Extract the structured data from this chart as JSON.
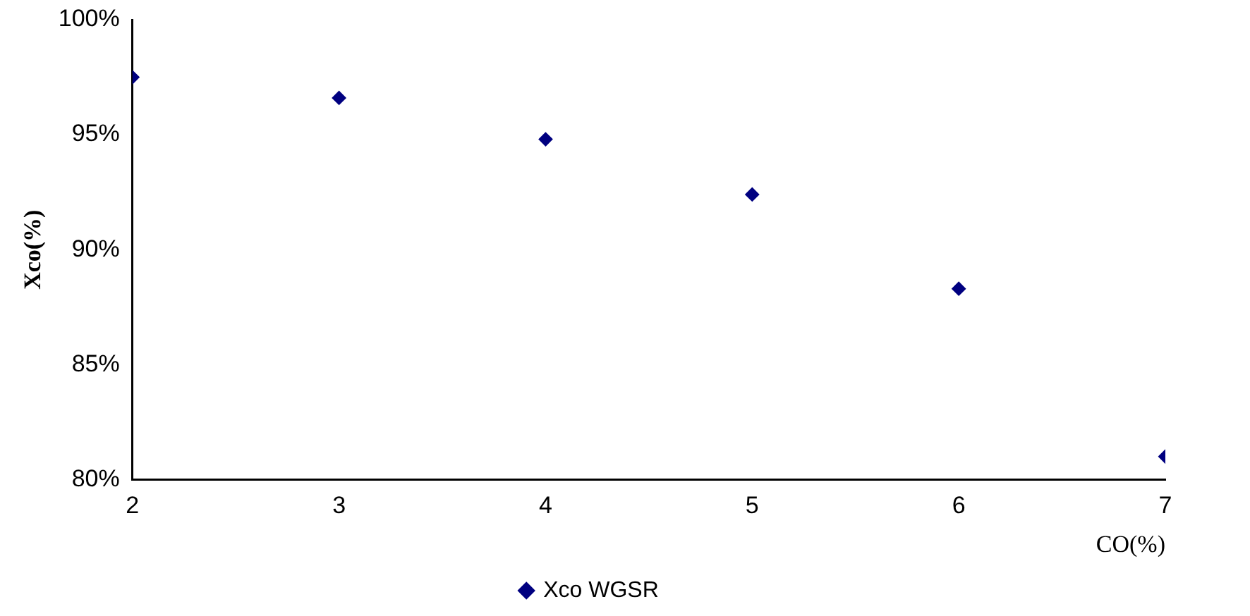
{
  "chart_data": {
    "type": "scatter",
    "xlabel": "CO(%)",
    "ylabel": "Xco(%)",
    "x": [
      2,
      3,
      4,
      5,
      6,
      7
    ],
    "series": [
      {
        "name": "Xco WGSR",
        "color": "#000080",
        "values": [
          97.5,
          96.6,
          94.8,
          92.4,
          88.3,
          81.0
        ]
      }
    ],
    "xlim": [
      2,
      7
    ],
    "xticks": [
      2,
      3,
      4,
      5,
      6,
      7
    ],
    "ylim": [
      80,
      100
    ],
    "yticks": [
      {
        "value": 80,
        "label": "80%"
      },
      {
        "value": 85,
        "label": "85%"
      },
      {
        "value": 90,
        "label": "90%"
      },
      {
        "value": 95,
        "label": "95%"
      },
      {
        "value": 100,
        "label": "100%"
      }
    ],
    "grid": false,
    "legend": "bottom",
    "marker": "diamond"
  }
}
